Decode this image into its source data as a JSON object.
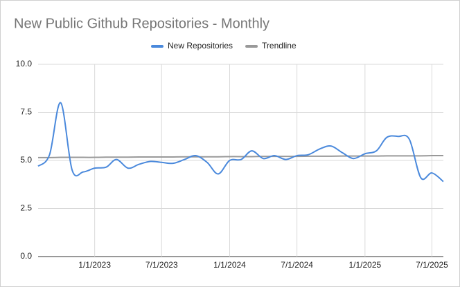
{
  "chart_data": {
    "type": "line",
    "title": "New Public Github Repositories - Monthly",
    "x": [
      "8/1/2022",
      "9/1/2022",
      "10/1/2022",
      "11/1/2022",
      "12/1/2022",
      "1/1/2023",
      "2/1/2023",
      "3/1/2023",
      "4/1/2023",
      "5/1/2023",
      "6/1/2023",
      "7/1/2023",
      "8/1/2023",
      "9/1/2023",
      "10/1/2023",
      "11/1/2023",
      "12/1/2023",
      "1/1/2024",
      "2/1/2024",
      "3/1/2024",
      "4/1/2024",
      "5/1/2024",
      "6/1/2024",
      "7/1/2024",
      "8/1/2024",
      "9/1/2024",
      "10/1/2024",
      "11/1/2024",
      "12/1/2024",
      "1/1/2025",
      "2/1/2025",
      "3/1/2025",
      "4/1/2025",
      "5/1/2025",
      "6/1/2025",
      "7/1/2025",
      "8/1/2025"
    ],
    "series": [
      {
        "name": "New Repositories",
        "color": "#4a89dc",
        "values": [
          4.7,
          5.3,
          8.0,
          4.5,
          4.4,
          4.6,
          4.65,
          5.05,
          4.6,
          4.8,
          4.95,
          4.9,
          4.85,
          5.05,
          5.25,
          4.9,
          4.3,
          5.0,
          5.05,
          5.5,
          5.1,
          5.25,
          5.05,
          5.25,
          5.3,
          5.6,
          5.75,
          5.4,
          5.1,
          5.35,
          5.5,
          6.2,
          6.25,
          6.1,
          4.1,
          4.35,
          3.9
        ]
      },
      {
        "name": "Trendline",
        "color": "#999999",
        "values": [
          5.15,
          5.15,
          5.16,
          5.16,
          5.16,
          5.16,
          5.17,
          5.17,
          5.17,
          5.18,
          5.18,
          5.18,
          5.18,
          5.19,
          5.19,
          5.19,
          5.19,
          5.2,
          5.2,
          5.2,
          5.21,
          5.21,
          5.21,
          5.21,
          5.22,
          5.22,
          5.22,
          5.23,
          5.23,
          5.23,
          5.23,
          5.24,
          5.24,
          5.24,
          5.24,
          5.25,
          5.25
        ]
      }
    ],
    "xlim": [
      "8/1/2022",
      "8/1/2025"
    ],
    "xticks": [
      "1/1/2023",
      "7/1/2023",
      "1/1/2024",
      "7/1/2024",
      "1/1/2025",
      "7/1/2025"
    ],
    "ylim": [
      0,
      10
    ],
    "yticks": [
      {
        "value": 0,
        "label": "0.0"
      },
      2.5,
      {
        "value": 5,
        "label": "5.0"
      },
      7.5,
      {
        "value": 10,
        "label": "10.0"
      }
    ],
    "grid": true,
    "legend": "top"
  }
}
